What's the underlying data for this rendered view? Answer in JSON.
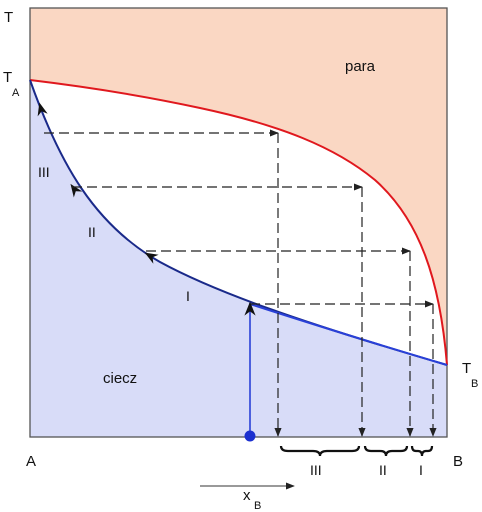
{
  "labels": {
    "t_axis": "T",
    "t_a": "T",
    "t_a_sub": "A",
    "t_b": "T",
    "t_b_sub": "B",
    "a": "A",
    "b": "B",
    "vapour": "para",
    "liquid": "ciecz",
    "x": "x",
    "x_sub": "B"
  },
  "stages": {
    "on_curve": [
      "III",
      "II",
      "I"
    ],
    "on_axis": [
      "III",
      "II",
      "I"
    ]
  },
  "colors": {
    "vapour_region": "#fad7c3",
    "liquid_region": "#d8dcf8",
    "dew_curve": "#e0181e",
    "bubble_curve": "#1a2a8a",
    "bubble_curve_lower": "#2940d8",
    "start_point": "#1a2fd0",
    "frame": "#555555",
    "dashes": "#222222"
  }
}
